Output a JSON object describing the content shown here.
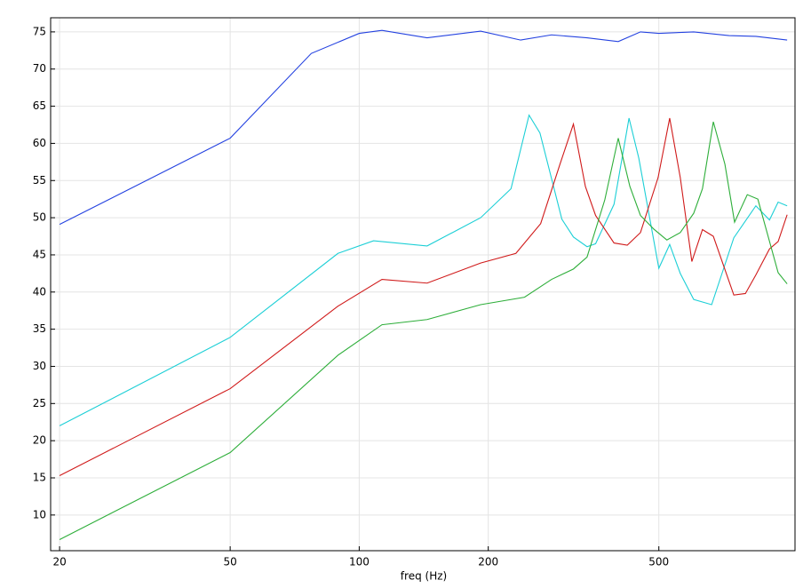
{
  "chart_data": {
    "type": "line",
    "xlabel": "freq (Hz)",
    "xscale": "log",
    "grid": true,
    "xlim": [
      19.06,
      1039
    ],
    "ylim": [
      5.2,
      76.9
    ],
    "xticks": [
      20,
      50,
      100,
      200,
      500
    ],
    "yticks": [
      10,
      15,
      20,
      25,
      30,
      35,
      40,
      45,
      50,
      55,
      60,
      65,
      70,
      75
    ],
    "series": [
      {
        "color": "#2442e0",
        "x": [
          20,
          50,
          77.3,
          100,
          113,
          144,
          192,
          238,
          281,
          340,
          402,
          453,
          500,
          603,
          729,
          842,
          996
        ],
        "values": [
          49.1,
          60.7,
          72.1,
          74.8,
          75.2,
          74.2,
          75.1,
          73.9,
          74.6,
          74.2,
          73.7,
          75,
          74.8,
          75,
          74.5,
          74.4,
          73.9
        ]
      },
      {
        "color": "#1ccfd6",
        "x": [
          20,
          50,
          89.2,
          108,
          144,
          192,
          226,
          249,
          264,
          297,
          316,
          340,
          356,
          393,
          426,
          449,
          500,
          530,
          561,
          603,
          664,
          748,
          842,
          906,
          949,
          996
        ],
        "values": [
          22.0,
          33.9,
          45.2,
          46.9,
          46.2,
          50.0,
          53.9,
          63.8,
          61.4,
          49.8,
          47.4,
          46.1,
          46.5,
          51.8,
          63.4,
          58.0,
          43.2,
          46.4,
          42.5,
          39.0,
          38.3,
          47.3,
          51.6,
          49.7,
          52.1,
          51.6
        ]
      },
      {
        "color": "#d01a1a",
        "x": [
          20,
          50,
          89.2,
          113,
          144,
          192,
          232,
          265,
          294,
          316,
          337,
          356,
          393,
          422,
          453,
          498,
          530,
          561,
          597,
          632,
          670,
          748,
          796,
          842,
          906,
          949,
          996
        ],
        "values": [
          15.3,
          27.0,
          38.1,
          41.7,
          41.2,
          43.9,
          45.2,
          49.2,
          57.2,
          62.6,
          54.2,
          50.3,
          46.6,
          46.3,
          48.0,
          55.4,
          63.4,
          55.4,
          44.1,
          48.4,
          47.5,
          39.6,
          39.8,
          42.3,
          45.8,
          46.8,
          50.4
        ]
      },
      {
        "color": "#2eae3a",
        "x": [
          20,
          50,
          89.2,
          113,
          144,
          192,
          243,
          281,
          316,
          340,
          374,
          402,
          428,
          453,
          486,
          522,
          561,
          603,
          632,
          670,
          713,
          751,
          804,
          851,
          949,
          996
        ],
        "values": [
          6.7,
          18.4,
          31.5,
          35.6,
          36.3,
          38.3,
          39.3,
          41.7,
          43.1,
          44.7,
          52.4,
          60.7,
          54.2,
          50.3,
          48.5,
          47.0,
          48.0,
          50.6,
          53.9,
          62.9,
          57.2,
          49.4,
          53.1,
          52.5,
          42.6,
          41.1
        ]
      }
    ]
  }
}
